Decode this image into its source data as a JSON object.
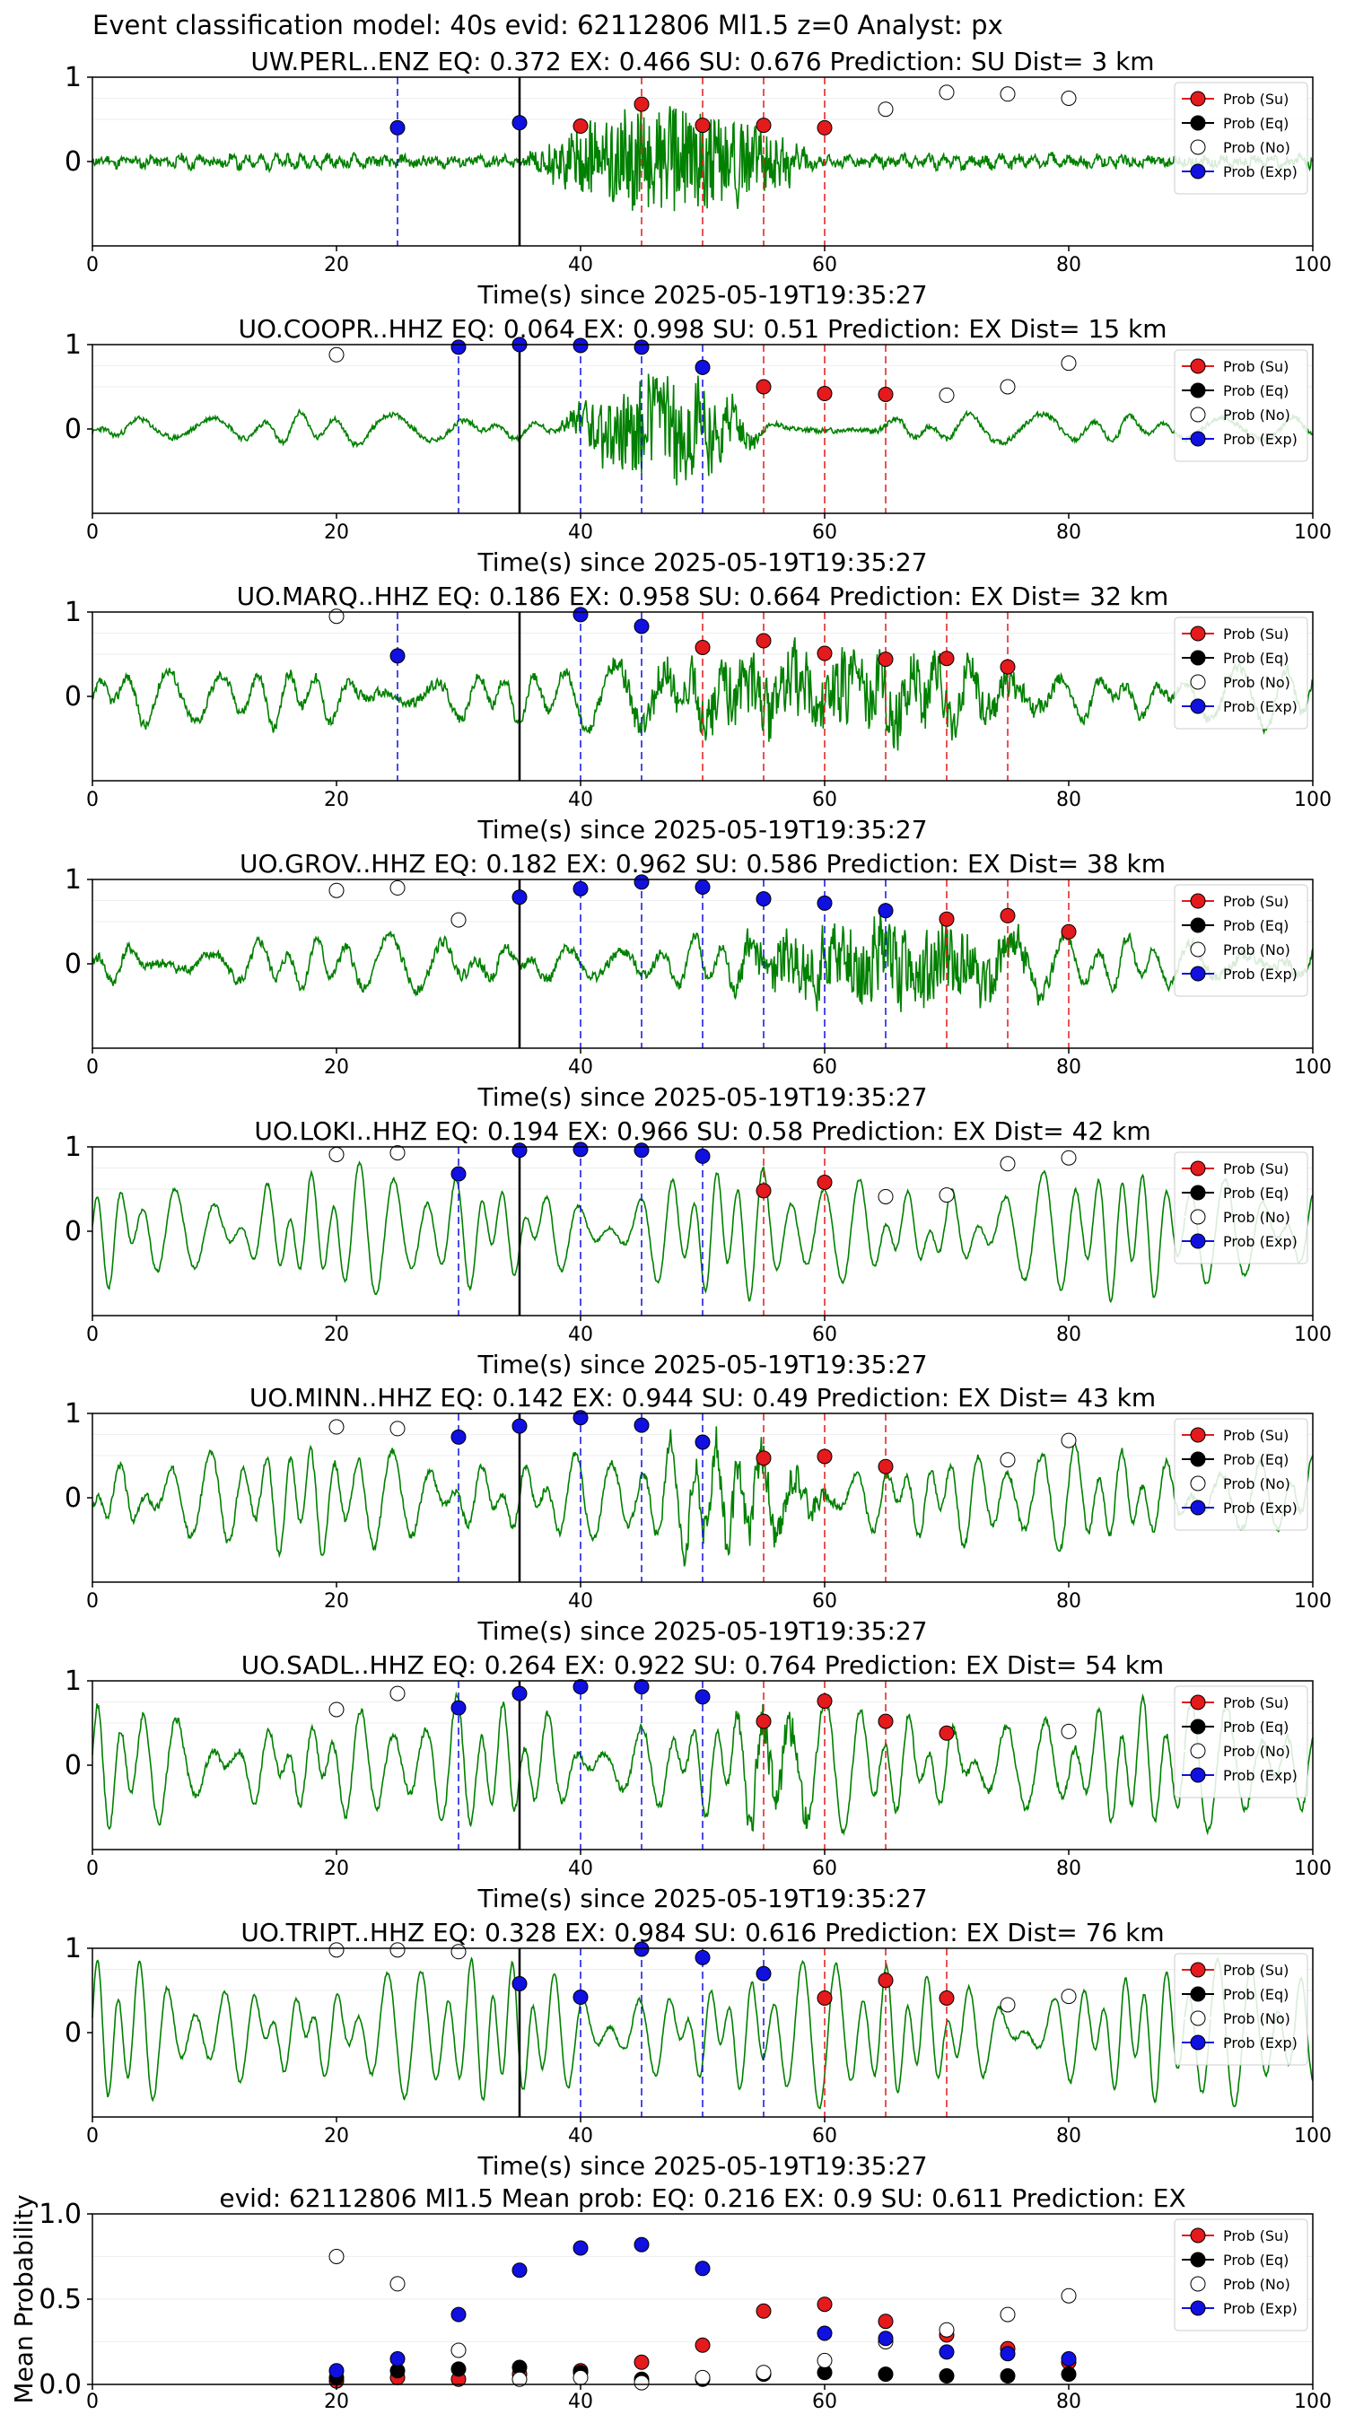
{
  "figure": {
    "suptitle": "Event classification model: 40s evid: 62112806 Ml1.5 z=0 Analyst: px"
  },
  "legend": {
    "entries": [
      {
        "label": "Prob (Su)",
        "color": "#e41a1c"
      },
      {
        "label": "Prob (Eq)",
        "color": "#000000"
      },
      {
        "label": "Prob (No)",
        "color": "#ffffff"
      },
      {
        "label": "Prob (Exp)",
        "color": "#1010e0"
      }
    ],
    "placement": "top-right"
  },
  "colors": {
    "waveform": "#008000",
    "su": "#e41a1c",
    "eq": "#000000",
    "no": "#ffffff",
    "exp": "#1010e0",
    "axis": "#000000",
    "grid": "#eeeeee"
  },
  "chart_data": [
    {
      "type": "line",
      "title": "UW.PERL..ENZ   EQ: 0.372  EX: 0.466  SU: 0.676   Prediction: SU    Dist= 3 km",
      "xlabel": "Time(s) since 2025-05-19T19:35:27",
      "xlim": [
        0,
        100
      ],
      "xticks": [
        0,
        20,
        40,
        60,
        80,
        100
      ],
      "yticks": [
        0,
        1
      ],
      "ylim": [
        -1,
        1
      ],
      "origin_line": 35,
      "series": [
        {
          "name": "Prob (Su)",
          "x": [
            40,
            45,
            50,
            55,
            60
          ],
          "y": [
            0.42,
            0.68,
            0.43,
            0.43,
            0.4
          ]
        },
        {
          "name": "Prob (No)",
          "x": [
            65,
            70,
            75,
            80
          ],
          "y": [
            0.62,
            0.82,
            0.8,
            0.75
          ]
        },
        {
          "name": "Prob (Exp)",
          "x": [
            25,
            35
          ],
          "y": [
            0.4,
            0.46
          ]
        }
      ],
      "vlines_exp": [
        25
      ],
      "vlines_su": [
        45,
        50,
        55,
        60
      ],
      "wave": {
        "seed": 11,
        "noise": 0.06,
        "smooth": 0.15,
        "burst_start": 35,
        "burst_end": 60,
        "burst_amp": 0.7,
        "base_amp": 0.05,
        "period": 1.2
      }
    },
    {
      "type": "line",
      "title": "UO.COOPR..HHZ   EQ: 0.064  EX: 0.998  SU: 0.51   Prediction: EX    Dist= 15 km",
      "xlabel": "Time(s) since 2025-05-19T19:35:27",
      "xlim": [
        0,
        100
      ],
      "xticks": [
        0,
        20,
        40,
        60,
        80,
        100
      ],
      "yticks": [
        0,
        1
      ],
      "ylim": [
        -1,
        1
      ],
      "origin_line": 35,
      "series": [
        {
          "name": "Prob (Su)",
          "x": [
            55,
            60,
            65
          ],
          "y": [
            0.5,
            0.42,
            0.41
          ]
        },
        {
          "name": "Prob (No)",
          "x": [
            20,
            70,
            75,
            80
          ],
          "y": [
            0.88,
            0.4,
            0.5,
            0.78
          ]
        },
        {
          "name": "Prob (Exp)",
          "x": [
            30,
            35,
            40,
            45,
            50
          ],
          "y": [
            0.97,
            1.0,
            0.99,
            0.97,
            0.73
          ]
        }
      ],
      "vlines_exp": [
        30,
        40,
        45,
        50
      ],
      "vlines_su": [
        55,
        60,
        65
      ],
      "wave": {
        "seed": 23,
        "noise": 0.04,
        "smooth": 0.5,
        "burst_start": 38,
        "burst_end": 55,
        "burst_amp": 0.8,
        "base_amp": 0.15,
        "period": 4
      }
    },
    {
      "type": "line",
      "title": "UO.MARQ..HHZ   EQ: 0.186  EX: 0.958  SU: 0.664   Prediction: EX    Dist= 32 km",
      "xlabel": "Time(s) since 2025-05-19T19:35:27",
      "xlim": [
        0,
        100
      ],
      "xticks": [
        0,
        20,
        40,
        60,
        80,
        100
      ],
      "yticks": [
        0,
        1
      ],
      "ylim": [
        -1,
        1
      ],
      "origin_line": 35,
      "series": [
        {
          "name": "Prob (Su)",
          "x": [
            50,
            55,
            60,
            65,
            70,
            75
          ],
          "y": [
            0.58,
            0.66,
            0.51,
            0.44,
            0.45,
            0.35
          ]
        },
        {
          "name": "Prob (No)",
          "x": [
            20
          ],
          "y": [
            0.95
          ]
        },
        {
          "name": "Prob (Exp)",
          "x": [
            25,
            40,
            45
          ],
          "y": [
            0.48,
            0.97,
            0.83
          ]
        }
      ],
      "vlines_exp": [
        25,
        40,
        45
      ],
      "vlines_su": [
        50,
        55,
        60,
        65,
        70,
        75
      ],
      "wave": {
        "seed": 37,
        "noise": 0.08,
        "smooth": 0.5,
        "burst_start": 40,
        "burst_end": 80,
        "burst_amp": 0.55,
        "base_amp": 0.3,
        "period": 3
      }
    },
    {
      "type": "line",
      "title": "UO.GROV..HHZ   EQ: 0.182  EX: 0.962  SU: 0.586   Prediction: EX    Dist= 38 km",
      "xlabel": "Time(s) since 2025-05-19T19:35:27",
      "xlim": [
        0,
        100
      ],
      "xticks": [
        0,
        20,
        40,
        60,
        80,
        100
      ],
      "yticks": [
        0,
        1
      ],
      "ylim": [
        -1,
        1
      ],
      "origin_line": 35,
      "series": [
        {
          "name": "Prob (Su)",
          "x": [
            70,
            75,
            80
          ],
          "y": [
            0.53,
            0.57,
            0.38
          ]
        },
        {
          "name": "Prob (No)",
          "x": [
            20,
            25,
            30
          ],
          "y": [
            0.87,
            0.9,
            0.52
          ]
        },
        {
          "name": "Prob (Exp)",
          "x": [
            35,
            40,
            45,
            50,
            55,
            60,
            65
          ],
          "y": [
            0.79,
            0.89,
            0.97,
            0.91,
            0.77,
            0.72,
            0.63
          ]
        }
      ],
      "vlines_exp": [
        40,
        45,
        50,
        55,
        60,
        65
      ],
      "vlines_su": [
        70,
        75,
        80
      ],
      "wave": {
        "seed": 41,
        "noise": 0.08,
        "smooth": 0.5,
        "burst_start": 50,
        "burst_end": 80,
        "burst_amp": 0.6,
        "base_amp": 0.25,
        "period": 3
      }
    },
    {
      "type": "line",
      "title": "UO.LOKI..HHZ   EQ: 0.194  EX: 0.966  SU: 0.58   Prediction: EX    Dist= 42 km",
      "xlabel": "Time(s) since 2025-05-19T19:35:27",
      "xlim": [
        0,
        100
      ],
      "xticks": [
        0,
        20,
        40,
        60,
        80,
        100
      ],
      "yticks": [
        0,
        1
      ],
      "ylim": [
        -1,
        1
      ],
      "origin_line": 35,
      "series": [
        {
          "name": "Prob (Su)",
          "x": [
            55,
            60
          ],
          "y": [
            0.48,
            0.58
          ]
        },
        {
          "name": "Prob (No)",
          "x": [
            20,
            25,
            65,
            70,
            75,
            80
          ],
          "y": [
            0.91,
            0.93,
            0.41,
            0.43,
            0.8,
            0.87
          ]
        },
        {
          "name": "Prob (Exp)",
          "x": [
            30,
            35,
            40,
            45,
            50
          ],
          "y": [
            0.68,
            0.96,
            0.97,
            0.96,
            0.89
          ]
        }
      ],
      "vlines_exp": [
        30,
        40,
        45,
        50
      ],
      "vlines_su": [
        55,
        60
      ],
      "wave": {
        "seed": 53,
        "noise": 0.03,
        "smooth": 0.6,
        "burst_start": 0,
        "burst_end": 0,
        "burst_amp": 0,
        "base_amp": 0.6,
        "period": 2.2
      }
    },
    {
      "type": "line",
      "title": "UO.MINN..HHZ   EQ: 0.142  EX: 0.944  SU: 0.49   Prediction: EX    Dist= 43 km",
      "xlabel": "Time(s) since 2025-05-19T19:35:27",
      "xlim": [
        0,
        100
      ],
      "xticks": [
        0,
        20,
        40,
        60,
        80,
        100
      ],
      "yticks": [
        0,
        1
      ],
      "ylim": [
        -1,
        1
      ],
      "origin_line": 35,
      "series": [
        {
          "name": "Prob (Su)",
          "x": [
            55,
            60,
            65
          ],
          "y": [
            0.47,
            0.49,
            0.37
          ]
        },
        {
          "name": "Prob (No)",
          "x": [
            20,
            25,
            75,
            80
          ],
          "y": [
            0.84,
            0.82,
            0.45,
            0.68
          ]
        },
        {
          "name": "Prob (Exp)",
          "x": [
            30,
            35,
            40,
            45,
            50
          ],
          "y": [
            0.72,
            0.85,
            0.95,
            0.86,
            0.66
          ]
        }
      ],
      "vlines_exp": [
        30,
        40,
        45,
        50
      ],
      "vlines_su": [
        55,
        60,
        65
      ],
      "wave": {
        "seed": 67,
        "noise": 0.06,
        "smooth": 0.6,
        "burst_start": 45,
        "burst_end": 62,
        "burst_amp": 0.35,
        "base_amp": 0.5,
        "period": 2.2
      }
    },
    {
      "type": "line",
      "title": "UO.SADL..HHZ   EQ: 0.264  EX: 0.922  SU: 0.764   Prediction: EX    Dist= 54 km",
      "xlabel": "Time(s) since 2025-05-19T19:35:27",
      "xlim": [
        0,
        100
      ],
      "xticks": [
        0,
        20,
        40,
        60,
        80,
        100
      ],
      "yticks": [
        0,
        1
      ],
      "ylim": [
        -1,
        1
      ],
      "origin_line": 35,
      "series": [
        {
          "name": "Prob (Su)",
          "x": [
            55,
            60,
            65,
            70
          ],
          "y": [
            0.52,
            0.76,
            0.52,
            0.38
          ]
        },
        {
          "name": "Prob (No)",
          "x": [
            20,
            25,
            80
          ],
          "y": [
            0.66,
            0.85,
            0.4
          ]
        },
        {
          "name": "Prob (Exp)",
          "x": [
            30,
            35,
            40,
            45,
            50
          ],
          "y": [
            0.68,
            0.85,
            0.93,
            0.93,
            0.81
          ]
        }
      ],
      "vlines_exp": [
        30,
        40,
        45,
        50
      ],
      "vlines_su": [
        55,
        60,
        65
      ],
      "wave": {
        "seed": 71,
        "noise": 0.06,
        "smooth": 0.6,
        "burst_start": 52,
        "burst_end": 60,
        "burst_amp": 0.35,
        "base_amp": 0.6,
        "period": 2.2
      }
    },
    {
      "type": "line",
      "title": "UO.TRIPT..HHZ   EQ: 0.328  EX: 0.984  SU: 0.616   Prediction: EX    Dist= 76 km",
      "xlabel": "Time(s) since 2025-05-19T19:35:27",
      "xlim": [
        0,
        100
      ],
      "xticks": [
        0,
        20,
        40,
        60,
        80,
        100
      ],
      "yticks": [
        0,
        1
      ],
      "ylim": [
        -1,
        1
      ],
      "origin_line": 35,
      "series": [
        {
          "name": "Prob (Su)",
          "x": [
            60,
            65,
            70
          ],
          "y": [
            0.41,
            0.62,
            0.41
          ]
        },
        {
          "name": "Prob (No)",
          "x": [
            20,
            25,
            30,
            75,
            80
          ],
          "y": [
            0.98,
            0.98,
            0.96,
            0.33,
            0.43
          ]
        },
        {
          "name": "Prob (Exp)",
          "x": [
            35,
            40,
            45,
            50,
            55
          ],
          "y": [
            0.58,
            0.42,
            0.99,
            0.89,
            0.7
          ]
        }
      ],
      "vlines_exp": [
        40,
        45,
        50,
        55
      ],
      "vlines_su": [
        60,
        65,
        70
      ],
      "wave": {
        "seed": 83,
        "noise": 0.03,
        "smooth": 0.6,
        "burst_start": 0,
        "burst_end": 0,
        "burst_amp": 0,
        "base_amp": 0.65,
        "period": 2.0
      }
    },
    {
      "type": "scatter",
      "title": "evid: 62112806  Ml1.5   Mean prob:    EQ: 0.216  EX: 0.9  SU: 0.611   Prediction: EX",
      "ylabel": "Mean Probability",
      "xlim": [
        0,
        100
      ],
      "xticks": [
        0,
        20,
        40,
        60,
        80,
        100
      ],
      "ylim": [
        0,
        1
      ],
      "yticks": [
        0.0,
        0.5,
        1.0
      ],
      "series": [
        {
          "name": "Prob (Su)",
          "x": [
            20,
            25,
            30,
            35,
            40,
            45,
            50,
            55,
            60,
            65,
            70,
            75,
            80
          ],
          "y": [
            0.02,
            0.04,
            0.03,
            0.06,
            0.08,
            0.13,
            0.23,
            0.43,
            0.47,
            0.37,
            0.29,
            0.21,
            0.13
          ]
        },
        {
          "name": "Prob (Eq)",
          "x": [
            20,
            25,
            30,
            35,
            40,
            45,
            50,
            55,
            60,
            65,
            70,
            75,
            80
          ],
          "y": [
            0.04,
            0.08,
            0.09,
            0.1,
            0.07,
            0.03,
            0.03,
            0.06,
            0.07,
            0.06,
            0.05,
            0.05,
            0.06
          ]
        },
        {
          "name": "Prob (No)",
          "x": [
            20,
            25,
            30,
            35,
            40,
            45,
            50,
            55,
            60,
            65,
            70,
            75,
            80
          ],
          "y": [
            0.75,
            0.59,
            0.2,
            0.03,
            0.04,
            0.01,
            0.04,
            0.07,
            0.14,
            0.25,
            0.32,
            0.41,
            0.52
          ]
        },
        {
          "name": "Prob (Exp)",
          "x": [
            20,
            25,
            30,
            35,
            40,
            45,
            50,
            60,
            65,
            70,
            75,
            80
          ],
          "y": [
            0.08,
            0.15,
            0.41,
            0.67,
            0.8,
            0.82,
            0.68,
            0.3,
            0.27,
            0.19,
            0.18,
            0.15
          ]
        }
      ]
    }
  ]
}
